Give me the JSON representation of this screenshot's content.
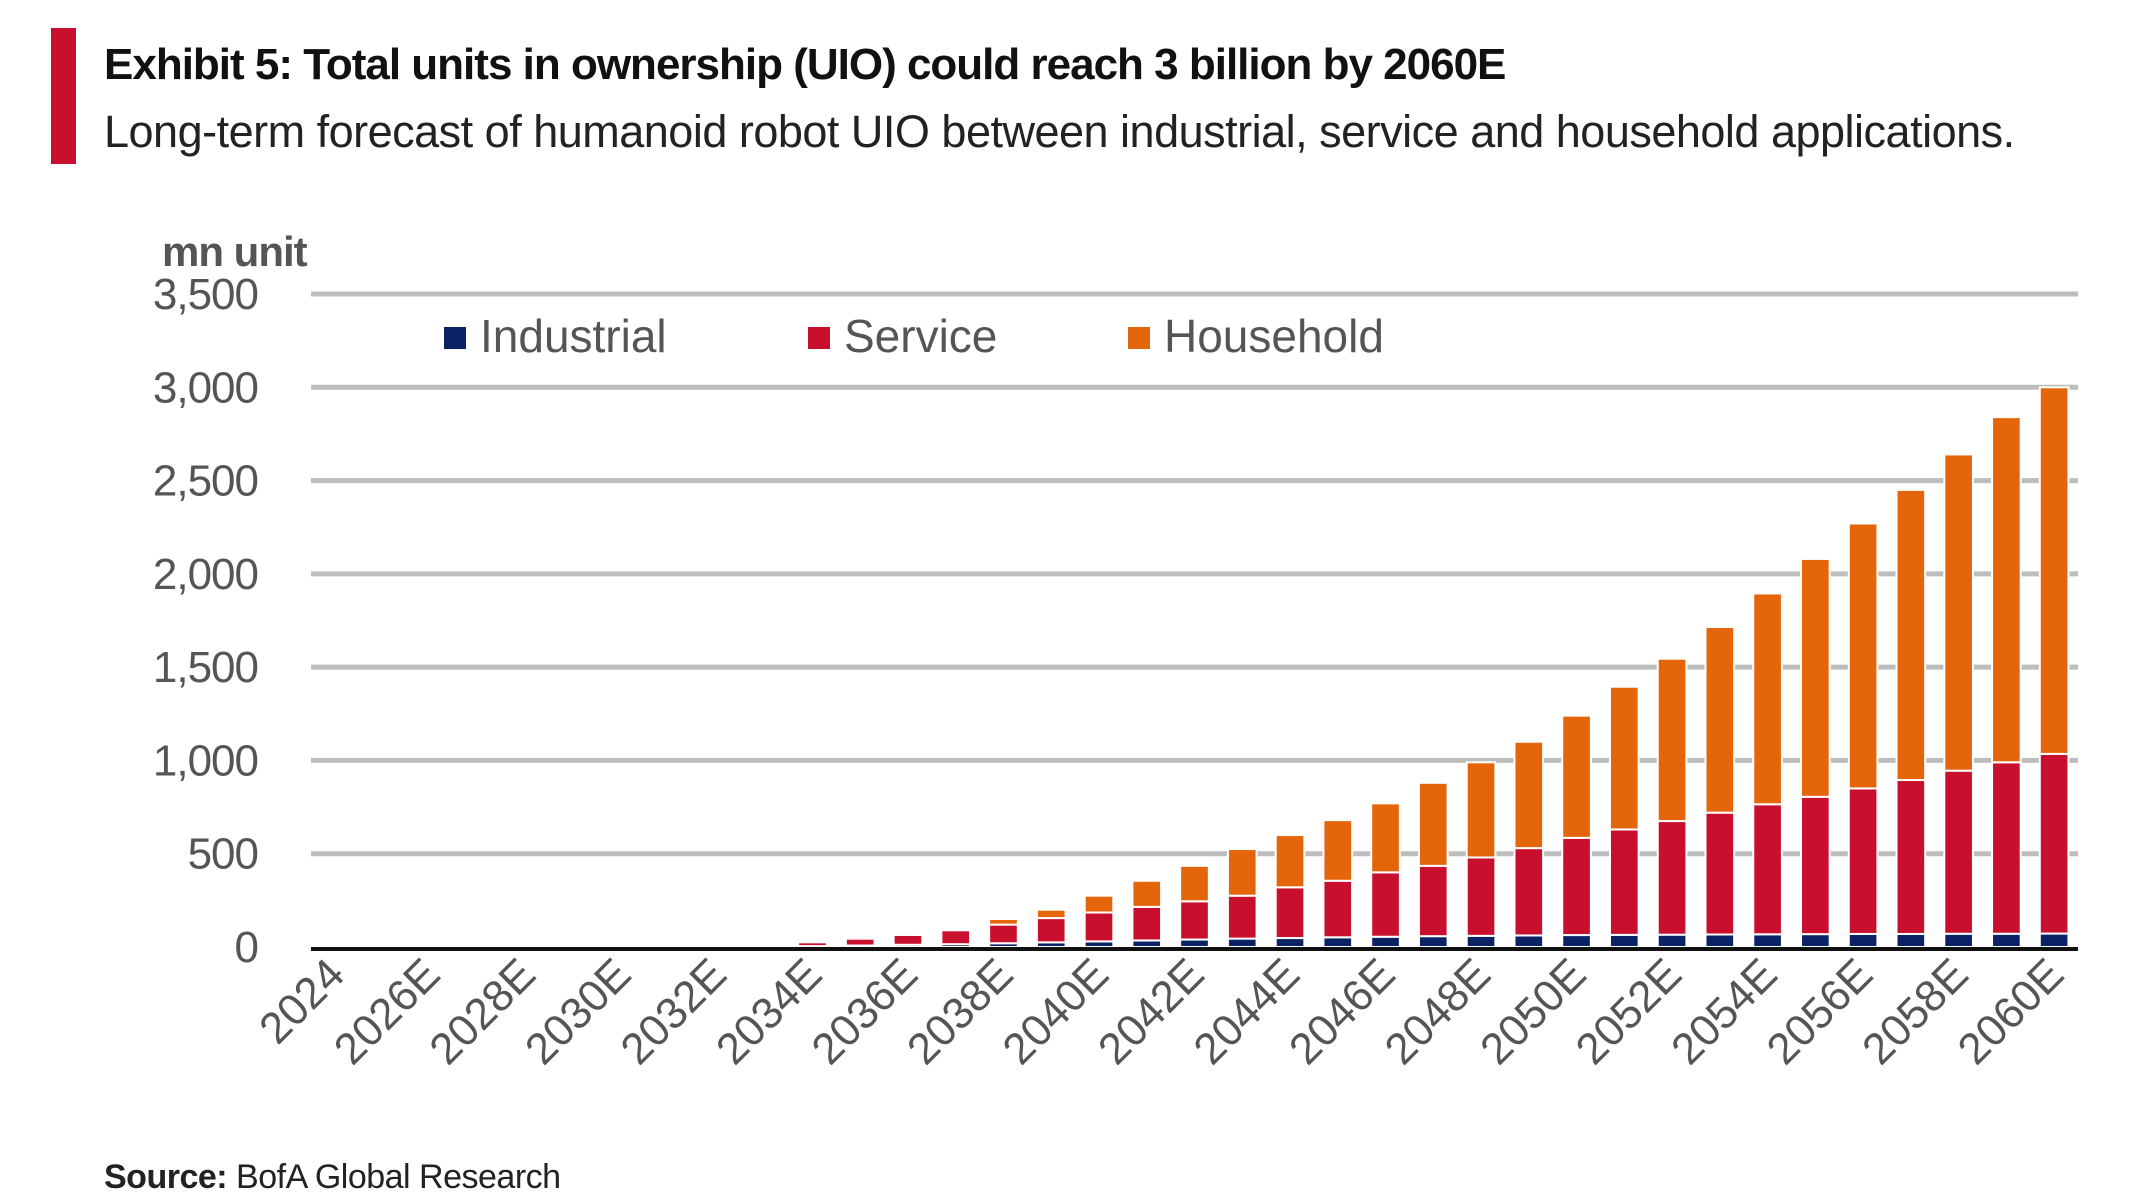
{
  "header": {
    "title": "Exhibit 5: Total units in ownership (UIO) could reach 3 billion by 2060E",
    "subtitle": "Long-term forecast of humanoid robot UIO between industrial, service and household applications."
  },
  "footer": {
    "source_label": "Source:",
    "source_text": "BofA Global Research"
  },
  "chart_data": {
    "type": "bar",
    "stacked": true,
    "ylabel": "mn unit",
    "ylim": [
      0,
      3500
    ],
    "yticks": [
      0,
      500,
      1000,
      1500,
      2000,
      2500,
      3000,
      3500
    ],
    "ytick_labels": [
      "0",
      "500",
      "1,000",
      "1,500",
      "2,000",
      "2,500",
      "3,000",
      "3,500"
    ],
    "grid": true,
    "legend_position": "top",
    "categories": [
      "2024",
      "2025E",
      "2026E",
      "2027E",
      "2028E",
      "2029E",
      "2030E",
      "2031E",
      "2032E",
      "2033E",
      "2034E",
      "2035E",
      "2036E",
      "2037E",
      "2038E",
      "2039E",
      "2040E",
      "2041E",
      "2042E",
      "2043E",
      "2044E",
      "2045E",
      "2046E",
      "2047E",
      "2048E",
      "2049E",
      "2050E",
      "2051E",
      "2052E",
      "2053E",
      "2054E",
      "2055E",
      "2056E",
      "2057E",
      "2058E",
      "2059E",
      "2060E"
    ],
    "visible_xtick_labels": [
      "2024",
      "2026E",
      "2028E",
      "2030E",
      "2032E",
      "2034E",
      "2036E",
      "2038E",
      "2040E",
      "2042E",
      "2044E",
      "2046E",
      "2048E",
      "2050E",
      "2052E",
      "2054E",
      "2056E",
      "2058E",
      "2060E"
    ],
    "series": [
      {
        "name": "Industrial",
        "color": "#0b2265",
        "values": [
          0,
          0,
          0,
          0,
          0,
          0,
          0,
          0,
          0.2,
          1,
          5,
          8,
          12,
          15,
          20,
          25,
          30,
          35,
          40,
          45,
          48,
          52,
          55,
          58,
          60,
          62,
          64,
          65,
          66,
          67,
          68,
          69,
          70,
          70,
          71,
          71,
          72
        ]
      },
      {
        "name": "Service",
        "color": "#c8102e",
        "values": [
          0,
          0,
          0,
          0,
          0,
          0,
          0,
          0,
          0.5,
          3,
          20,
          37,
          53,
          75,
          100,
          130,
          155,
          180,
          205,
          230,
          272,
          303,
          345,
          377,
          420,
          468,
          521,
          565,
          609,
          653,
          697,
          736,
          780,
          825,
          874,
          919,
          963
        ]
      },
      {
        "name": "Household",
        "color": "#e4650a",
        "values": [
          0,
          0,
          0,
          0,
          0,
          0,
          0,
          0,
          0,
          1,
          0,
          5,
          5,
          5,
          30,
          45,
          90,
          140,
          190,
          250,
          280,
          325,
          370,
          445,
          510,
          570,
          655,
          765,
          870,
          995,
          1130,
          1275,
          1420,
          1555,
          1695,
          1850,
          1965
        ]
      }
    ]
  }
}
